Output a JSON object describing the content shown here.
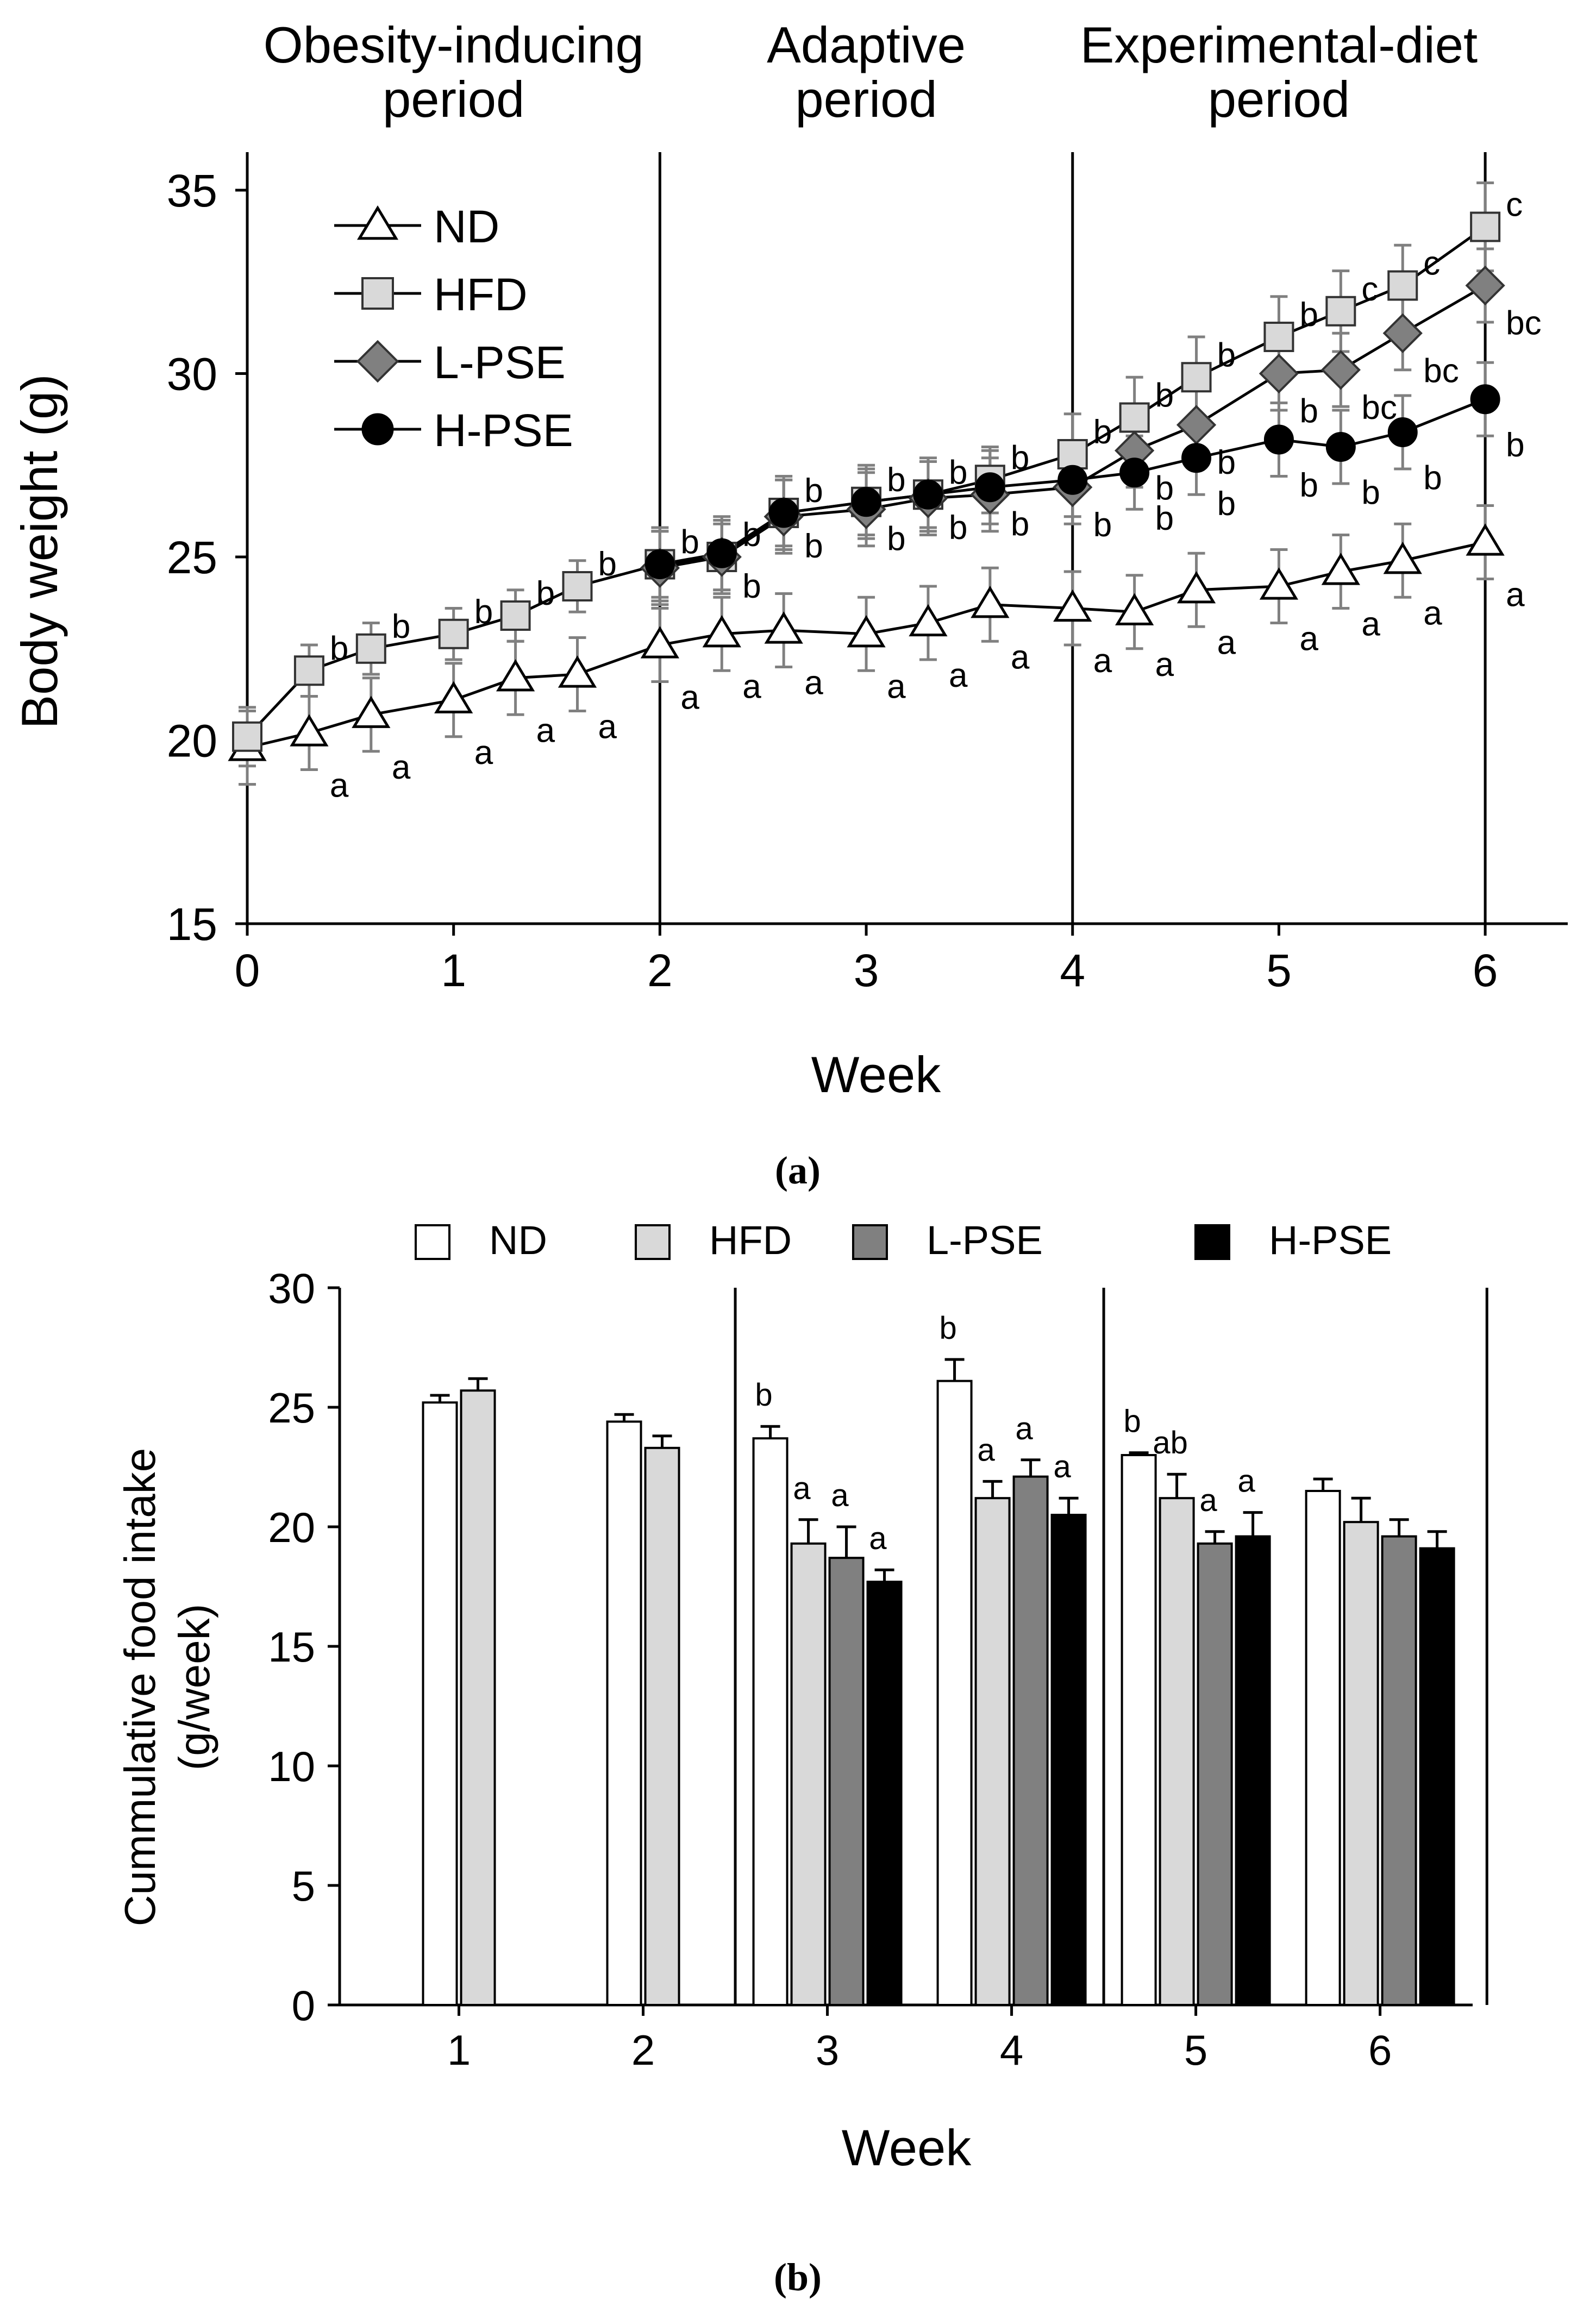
{
  "panel_a_label": "(a)",
  "panel_b_label": "(b)",
  "chart_data": [
    {
      "type": "line",
      "xlabel": "Week",
      "ylabel": "Body weight (g)",
      "xlim": [
        0,
        6.4
      ],
      "ylim": [
        15,
        35
      ],
      "xticks": [
        0,
        1,
        2,
        3,
        4,
        5,
        6
      ],
      "yticks": [
        15,
        20,
        25,
        30,
        35
      ],
      "periods": [
        {
          "label_lines": [
            "Obesity-inducing",
            "period"
          ],
          "start": 0,
          "end": 2
        },
        {
          "label_lines": [
            "Adaptive",
            "period"
          ],
          "start": 2,
          "end": 4
        },
        {
          "label_lines": [
            "Experimental-diet",
            "period"
          ],
          "start": 4,
          "end": 6
        }
      ],
      "dividers": [
        2,
        4,
        6
      ],
      "legend_position": "top-left",
      "series": [
        {
          "name": "ND",
          "marker": "triangle",
          "fill": "#ffffff",
          "x": [
            0,
            0.3,
            0.6,
            1,
            1.3,
            1.6,
            2,
            2.3,
            2.6,
            3,
            3.3,
            3.6,
            4,
            4.3,
            4.6,
            5,
            5.3,
            5.6,
            6
          ],
          "y": [
            19.8,
            20.2,
            20.7,
            21.1,
            21.7,
            21.8,
            22.6,
            22.9,
            23.0,
            22.9,
            23.2,
            23.7,
            23.6,
            23.5,
            24.1,
            24.2,
            24.6,
            24.9,
            25.4
          ],
          "err": [
            1.0,
            1.0,
            1.0,
            1.0,
            1.0,
            1.0,
            1.0,
            1.0,
            1.0,
            1.0,
            1.0,
            1.0,
            1.0,
            1.0,
            1.0,
            1.0,
            1.0,
            1.0,
            1.0
          ],
          "sig": [
            "",
            "a",
            "a",
            "a",
            "a",
            "a",
            "a",
            "a",
            "a",
            "a",
            "a",
            "a",
            "a",
            "a",
            "a",
            "a",
            "a",
            "a",
            "a"
          ]
        },
        {
          "name": "HFD",
          "marker": "square",
          "fill": "#d9d9d9",
          "x": [
            0,
            0.3,
            0.6,
            1,
            1.3,
            1.6,
            2,
            2.3,
            2.6,
            3,
            3.3,
            3.6,
            4,
            4.3,
            4.6,
            5,
            5.3,
            5.6,
            6
          ],
          "y": [
            20.1,
            21.9,
            22.5,
            22.9,
            23.4,
            24.2,
            24.8,
            25.0,
            26.2,
            26.5,
            26.7,
            27.1,
            27.8,
            28.8,
            29.9,
            31.0,
            31.7,
            32.4,
            34.0
          ],
          "err": [
            0.8,
            0.7,
            0.7,
            0.7,
            0.7,
            0.7,
            0.9,
            0.9,
            0.9,
            0.9,
            0.9,
            0.9,
            1.1,
            1.1,
            1.1,
            1.1,
            1.1,
            1.1,
            1.2
          ],
          "sig": [
            "",
            "b",
            "b",
            "b",
            "b",
            "b",
            "b",
            "b",
            "b",
            "b",
            "b",
            "b",
            "b",
            "b",
            "b",
            "b",
            "c",
            "c",
            "c"
          ]
        },
        {
          "name": "L-PSE",
          "marker": "diamond",
          "fill": "#808080",
          "x": [
            2,
            2.3,
            2.6,
            3,
            3.3,
            3.6,
            4,
            4.3,
            4.6,
            5,
            5.3,
            5.6,
            6
          ],
          "y": [
            24.7,
            25.0,
            26.1,
            26.3,
            26.6,
            26.7,
            26.9,
            27.9,
            28.6,
            30.0,
            30.1,
            31.1,
            32.4
          ],
          "err": [
            1.0,
            1.0,
            1.0,
            1.0,
            1.0,
            1.0,
            1.0,
            1.0,
            1.0,
            1.0,
            1.0,
            1.0,
            1.0
          ],
          "sig": [
            "",
            "b",
            "b",
            "b",
            "b",
            "b",
            "b",
            "b",
            "b",
            "b",
            "bc",
            "bc",
            "bc"
          ]
        },
        {
          "name": "H-PSE",
          "marker": "circle",
          "fill": "#000000",
          "x": [
            2,
            2.3,
            2.6,
            3,
            3.3,
            3.6,
            4,
            4.3,
            4.6,
            5,
            5.3,
            5.6,
            6
          ],
          "y": [
            24.8,
            25.1,
            26.2,
            26.5,
            26.7,
            26.9,
            27.1,
            27.3,
            27.7,
            28.2,
            28.0,
            28.4,
            29.3
          ],
          "err": [
            1.0,
            1.0,
            1.0,
            1.0,
            1.0,
            1.0,
            1.0,
            1.0,
            1.0,
            1.0,
            1.0,
            1.0,
            1.0
          ],
          "sig": [
            "",
            "",
            "",
            "",
            "",
            "",
            "",
            "b",
            "b",
            "b",
            "b",
            "b",
            "b"
          ]
        }
      ]
    },
    {
      "type": "bar",
      "xlabel": "Week",
      "ylabel_lines": [
        "Cummulative food intake",
        "(g/week)"
      ],
      "ylim": [
        0,
        30
      ],
      "yticks": [
        0,
        5,
        10,
        15,
        20,
        25,
        30
      ],
      "categories": [
        "1",
        "2",
        "3",
        "4",
        "5",
        "6"
      ],
      "dividers_between": [
        2,
        4,
        6
      ],
      "legend_position": "top",
      "series": [
        {
          "name": "ND",
          "color": "#ffffff",
          "values": [
            25.2,
            24.4,
            23.7,
            26.1,
            23.0,
            21.5
          ],
          "err": [
            0.3,
            0.3,
            0.5,
            0.9,
            0.1,
            0.5
          ],
          "sig": [
            "",
            "",
            "b",
            "b",
            "b",
            ""
          ]
        },
        {
          "name": "HFD",
          "color": "#d9d9d9",
          "values": [
            25.7,
            23.3,
            19.3,
            21.2,
            21.2,
            20.2
          ],
          "err": [
            0.5,
            0.5,
            1.0,
            0.7,
            1.0,
            1.0
          ],
          "sig": [
            "",
            "",
            "a",
            "a",
            "ab",
            ""
          ]
        },
        {
          "name": "L-PSE",
          "color": "#808080",
          "values": [
            null,
            null,
            18.7,
            22.1,
            19.3,
            19.6
          ],
          "err": [
            0,
            0,
            1.3,
            0.7,
            0.5,
            0.7
          ],
          "sig": [
            "",
            "",
            "a",
            "a",
            "a",
            ""
          ]
        },
        {
          "name": "H-PSE",
          "color": "#000000",
          "values": [
            null,
            null,
            17.7,
            20.5,
            19.6,
            19.1
          ],
          "err": [
            0,
            0,
            0.5,
            0.7,
            1.0,
            0.7
          ],
          "sig": [
            "",
            "",
            "a",
            "a",
            "a",
            ""
          ]
        }
      ]
    }
  ]
}
